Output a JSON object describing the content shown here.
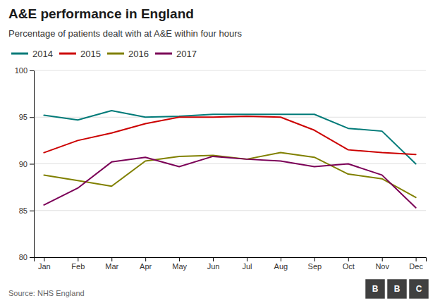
{
  "chart_data": {
    "type": "line",
    "title": "A&E performance in England",
    "subtitle": "Percentage of patients dealt with at A&E within four hours",
    "source": "Source: NHS England",
    "annotations": [
      "B",
      "B",
      "C"
    ],
    "categories": [
      "Jan",
      "Feb",
      "Mar",
      "Apr",
      "May",
      "Jun",
      "Jul",
      "Aug",
      "Sep",
      "Oct",
      "Nov",
      "Dec"
    ],
    "series": [
      {
        "name": "2014",
        "color": "#007A78",
        "values": [
          95.2,
          94.7,
          95.7,
          95.0,
          95.1,
          95.3,
          95.3,
          95.3,
          95.3,
          93.8,
          93.5,
          90.0
        ]
      },
      {
        "name": "2015",
        "color": "#CC0000",
        "values": [
          91.2,
          92.5,
          93.3,
          94.3,
          95.0,
          95.0,
          95.1,
          95.0,
          93.6,
          91.5,
          91.2,
          91.0
        ]
      },
      {
        "name": "2016",
        "color": "#808000",
        "values": [
          88.8,
          88.2,
          87.6,
          90.3,
          90.8,
          90.9,
          90.5,
          91.2,
          90.7,
          88.9,
          88.4,
          86.4
        ]
      },
      {
        "name": "2017",
        "color": "#7B0057",
        "values": [
          85.6,
          87.4,
          90.2,
          90.7,
          89.7,
          90.8,
          90.5,
          90.3,
          89.7,
          90.0,
          88.8,
          85.3
        ]
      }
    ],
    "ylim": [
      80,
      100
    ],
    "yticks": [
      80,
      85,
      90,
      95,
      100
    ],
    "grid": true,
    "legend": "top-left"
  }
}
